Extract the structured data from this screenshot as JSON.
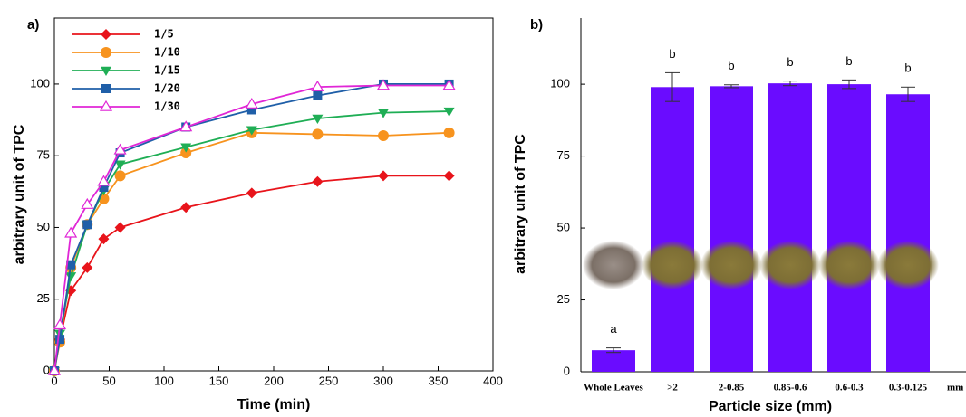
{
  "chart_data": [
    {
      "type": "line",
      "panel_label": "a)",
      "x_label": "Time (min)",
      "y_label": "arbitrary unit of TPC",
      "x": [
        0,
        5,
        15,
        30,
        45,
        60,
        120,
        180,
        240,
        300,
        360
      ],
      "series": [
        {
          "name": "1/5",
          "color": "#e8141b",
          "marker": "diamond",
          "values": [
            0,
            11,
            28,
            36,
            46,
            50,
            57,
            62,
            66,
            68,
            68
          ]
        },
        {
          "name": "1/10",
          "color": "#f7931e",
          "marker": "circle",
          "values": [
            0,
            10,
            36,
            51,
            60,
            68,
            76,
            83,
            82.5,
            82,
            83
          ]
        },
        {
          "name": "1/15",
          "color": "#1fae55",
          "marker": "triangle-down",
          "values": [
            0,
            13,
            33,
            51,
            63,
            72,
            78,
            84,
            88,
            90,
            90.5
          ]
        },
        {
          "name": "1/20",
          "color": "#1f5fa8",
          "marker": "square",
          "values": [
            0,
            11,
            37,
            51,
            64,
            76,
            85,
            91,
            96,
            100,
            100
          ]
        },
        {
          "name": "1/30",
          "color": "#e026d6",
          "marker": "triangle-open",
          "values": [
            0,
            16,
            48,
            58,
            66,
            77,
            85,
            93,
            99,
            99.5,
            99.5
          ]
        }
      ],
      "xlim": [
        0,
        400
      ],
      "xticks": [
        0,
        50,
        100,
        150,
        200,
        250,
        300,
        350,
        400
      ],
      "ylim": [
        0,
        123
      ],
      "yticks": [
        0,
        25,
        50,
        75,
        100
      ]
    },
    {
      "type": "bar",
      "panel_label": "b)",
      "x_label": "Particle size (mm)",
      "y_label": "arbitrary unit of TPC",
      "categories": [
        "Whole Leaves",
        ">2",
        "2-0.85",
        "0.85-0.6",
        "0.6-0.3",
        "0.3-0.125"
      ],
      "x_unit_label": "mm",
      "values": [
        7.5,
        99,
        99.3,
        100.3,
        100,
        96.5
      ],
      "errors": [
        0.8,
        5,
        0.5,
        0.8,
        1.5,
        2.5
      ],
      "group_letters": [
        "a",
        "b",
        "b",
        "b",
        "b",
        "b"
      ],
      "color": "#6a0cff",
      "ylim": [
        0,
        123
      ],
      "yticks": [
        0,
        25,
        50,
        75,
        100
      ]
    }
  ]
}
